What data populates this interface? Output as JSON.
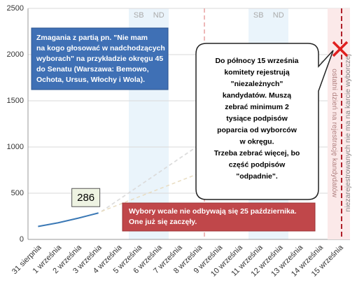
{
  "chart_data": {
    "type": "line",
    "categories": [
      "31 sierpnia",
      "1 września",
      "2 września",
      "3 września",
      "4 września",
      "5 września",
      "6 września",
      "7 września",
      "8 września",
      "9 września",
      "10 września",
      "11 września",
      "12 września",
      "13 września",
      "14 września",
      "15 września"
    ],
    "series": [
      {
        "color": "#3a78b5",
        "values": [
          140,
          180,
          230,
          286,
          null,
          null,
          null,
          null,
          null,
          null,
          null,
          null,
          null,
          null,
          null,
          null
        ]
      }
    ],
    "ylim": [
      0,
      2500
    ],
    "yticks": [
      0,
      500,
      1000,
      1500,
      2000,
      2500
    ],
    "grid": true,
    "weekend_bands": [
      [
        "SB",
        "ND"
      ],
      [
        "SB",
        "ND"
      ]
    ],
    "annotations": {
      "intro": [
        "Zmagania z partią pn. \"Nie mam",
        "na kogo głosować w nadchodzących",
        "wyborach\" na przykładzie okręgu 45",
        "do Senatu (Warszawa: Bemowo,",
        "Ochota, Ursus, Włochy i Wola)."
      ],
      "callout": [
        "Do północy 15  września",
        "komitety rejestrują",
        "\"niezależnych\"",
        "kandydatów. Muszą",
        "zebrać minimum 2",
        "tysiące podpisów",
        "poparcia od wyborców",
        "w okręgu.",
        "Trzeba zebrać więcej, bo",
        "część podpisów",
        "\"odpadnie\"."
      ],
      "warning": [
        "Wybory wcale nie odbywają się 25  października.",
        "One już się zaczęły."
      ],
      "deadline": "ostatni dzień na rejestrację kandydatów",
      "ballot": "niezarejestrowanych nie ma na karcie wyborczej"
    }
  }
}
